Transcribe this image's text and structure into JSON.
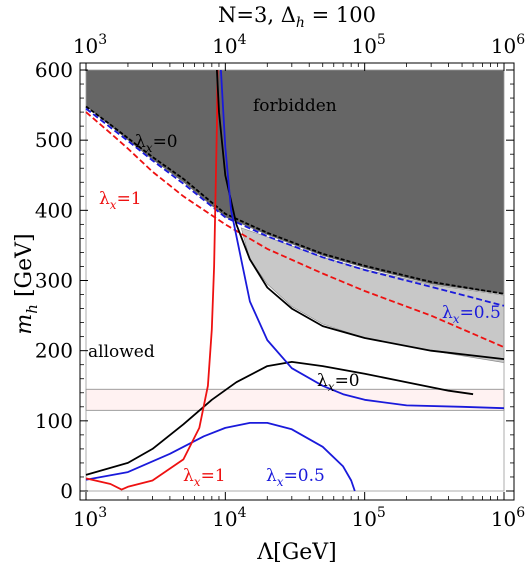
{
  "chart_data": {
    "type": "line",
    "title": "N=3, Δ_h = 100",
    "title_parts": {
      "prefix": "N=3, Δ",
      "sub": "h",
      "suffix": " = 100"
    },
    "xlabel": "Λ[GeV]",
    "ylabel": "m_h [GeV]",
    "ylabel_parts": {
      "main": "m",
      "sub": "h",
      "unit": " [GeV]"
    },
    "x_scale": "log",
    "xlim": [
      1000,
      1000000
    ],
    "ylim": [
      0,
      600
    ],
    "x_ticks": [
      1000,
      10000,
      100000,
      1000000
    ],
    "x_tick_labels": [
      {
        "base": "10",
        "exp": "3"
      },
      {
        "base": "10",
        "exp": "4"
      },
      {
        "base": "10",
        "exp": "5"
      },
      {
        "base": "10",
        "exp": "6"
      }
    ],
    "y_ticks": [
      0,
      100,
      200,
      300,
      400,
      500,
      600
    ],
    "y_tick_labels": [
      "0",
      "100",
      "200",
      "300",
      "400",
      "500",
      "600"
    ],
    "colors": {
      "black": "#000000",
      "red": "#ee1111",
      "blue": "#1a1adb",
      "forbidden": "#666666",
      "light_region": "#c8c8c8",
      "band": "#fff2f2"
    },
    "annotations": [
      {
        "text": "forbidden",
        "color": "#000000"
      },
      {
        "text": "allowed",
        "color": "#000000"
      },
      {
        "main": "λ",
        "sub": "x",
        "suffix": "=0",
        "color": "#000000",
        "which": "upper"
      },
      {
        "main": "λ",
        "sub": "x",
        "suffix": "=1",
        "color": "#ee1111",
        "which": "upper"
      },
      {
        "main": "λ",
        "sub": "x",
        "suffix": "=0.5",
        "color": "#1a1adb",
        "which": "upper"
      },
      {
        "main": "λ",
        "sub": "x",
        "suffix": "=0",
        "color": "#000000",
        "which": "lower"
      },
      {
        "main": "λ",
        "sub": "x",
        "suffix": "=1",
        "color": "#ee1111",
        "which": "lower"
      },
      {
        "main": "λ",
        "sub": "x",
        "suffix": "=0.5",
        "color": "#1a1adb",
        "which": "lower"
      }
    ],
    "regions": [
      {
        "name": "forbidden",
        "color": "#666666",
        "lower_boundary": [
          [
            1000,
            548
          ],
          [
            1500,
            520
          ],
          [
            2000,
            500
          ],
          [
            3000,
            472
          ],
          [
            5000,
            440
          ],
          [
            10000,
            390
          ],
          [
            20000,
            365
          ],
          [
            50000,
            335
          ],
          [
            100000,
            318
          ],
          [
            300000,
            295
          ],
          [
            1000000,
            280
          ]
        ],
        "upper": 600
      },
      {
        "name": "grey-region",
        "color": "#c8c8c8",
        "upper_boundary": [
          [
            13000,
            375
          ],
          [
            20000,
            362
          ],
          [
            50000,
            333
          ],
          [
            100000,
            316
          ],
          [
            300000,
            294
          ],
          [
            1000000,
            279
          ]
        ],
        "lower_boundary": [
          [
            13000,
            375
          ],
          [
            15000,
            330
          ],
          [
            20000,
            295
          ],
          [
            30000,
            263
          ],
          [
            50000,
            238
          ],
          [
            100000,
            218
          ],
          [
            300000,
            200
          ],
          [
            1000000,
            183
          ]
        ]
      },
      {
        "name": "higgs-band",
        "color": "#fff2f2",
        "y_range": [
          115,
          145
        ]
      }
    ],
    "series": [
      {
        "name": "λ_x=0 upper",
        "color": "#000000",
        "dash": "4 2",
        "points": [
          [
            1000,
            548
          ],
          [
            1500,
            522
          ],
          [
            2000,
            503
          ],
          [
            3000,
            476
          ],
          [
            5000,
            445
          ],
          [
            10000,
            395
          ],
          [
            20000,
            368
          ],
          [
            50000,
            338
          ],
          [
            100000,
            321
          ],
          [
            300000,
            298
          ],
          [
            1000000,
            281
          ]
        ]
      },
      {
        "name": "λ_x=0.5 upper",
        "color": "#1a1adb",
        "dash": "6 3",
        "points": [
          [
            1000,
            545
          ],
          [
            1500,
            518
          ],
          [
            2000,
            499
          ],
          [
            3000,
            471
          ],
          [
            5000,
            438
          ],
          [
            10000,
            390
          ],
          [
            20000,
            363
          ],
          [
            50000,
            333
          ],
          [
            100000,
            315
          ],
          [
            300000,
            291
          ],
          [
            1000000,
            264
          ]
        ]
      },
      {
        "name": "λ_x=1 upper",
        "color": "#ee1111",
        "dash": "6 3",
        "points": [
          [
            1000,
            540
          ],
          [
            1500,
            510
          ],
          [
            2000,
            488
          ],
          [
            3000,
            455
          ],
          [
            5000,
            420
          ],
          [
            10000,
            380
          ],
          [
            20000,
            345
          ],
          [
            50000,
            310
          ],
          [
            100000,
            285
          ],
          [
            300000,
            250
          ],
          [
            1000000,
            205
          ]
        ]
      },
      {
        "name": "λ_x=0 lower",
        "color": "#000000",
        "dash": "",
        "points": [
          [
            1000,
            23
          ],
          [
            2000,
            40
          ],
          [
            3000,
            60
          ],
          [
            5000,
            95
          ],
          [
            8000,
            130
          ],
          [
            12000,
            155
          ],
          [
            20000,
            178
          ],
          [
            30000,
            184
          ],
          [
            50000,
            178
          ],
          [
            100000,
            167
          ],
          [
            200000,
            155
          ],
          [
            400000,
            143
          ],
          [
            600000,
            138
          ]
        ]
      },
      {
        "name": "λ_x=0.5 lower",
        "color": "#1a1adb",
        "dash": "",
        "points": [
          [
            1000,
            16
          ],
          [
            2000,
            27
          ],
          [
            4000,
            53
          ],
          [
            7000,
            78
          ],
          [
            10000,
            90
          ],
          [
            15000,
            97
          ],
          [
            20000,
            97
          ],
          [
            30000,
            88
          ],
          [
            50000,
            63
          ],
          [
            70000,
            35
          ],
          [
            80000,
            15
          ],
          [
            85000,
            0
          ]
        ]
      },
      {
        "name": "λ_x=1 lower",
        "color": "#ee1111",
        "dash": "",
        "points": [
          [
            1000,
            18
          ],
          [
            1500,
            10
          ],
          [
            1800,
            2
          ],
          [
            2000,
            6
          ],
          [
            3000,
            15
          ],
          [
            5000,
            45
          ],
          [
            6500,
            90
          ],
          [
            7500,
            150
          ],
          [
            8000,
            230
          ],
          [
            8300,
            320
          ],
          [
            8500,
            420
          ],
          [
            8700,
            520
          ],
          [
            8800,
            600
          ]
        ]
      },
      {
        "name": "λ_x=0 steep",
        "color": "#000000",
        "dash": "",
        "points": [
          [
            8700,
            600
          ],
          [
            9000,
            540
          ],
          [
            10000,
            450
          ],
          [
            12000,
            380
          ],
          [
            15000,
            330
          ],
          [
            20000,
            290
          ],
          [
            30000,
            260
          ],
          [
            50000,
            235
          ],
          [
            100000,
            218
          ],
          [
            300000,
            200
          ],
          [
            1000000,
            188
          ]
        ]
      },
      {
        "name": "λ_x=0.5 steep",
        "color": "#1a1adb",
        "dash": "",
        "points": [
          [
            9300,
            600
          ],
          [
            10000,
            490
          ],
          [
            11000,
            400
          ],
          [
            13000,
            330
          ],
          [
            15000,
            270
          ],
          [
            20000,
            215
          ],
          [
            30000,
            175
          ],
          [
            50000,
            150
          ],
          [
            70000,
            138
          ],
          [
            100000,
            130
          ],
          [
            200000,
            122
          ],
          [
            500000,
            120
          ],
          [
            1000000,
            118
          ]
        ]
      }
    ]
  }
}
